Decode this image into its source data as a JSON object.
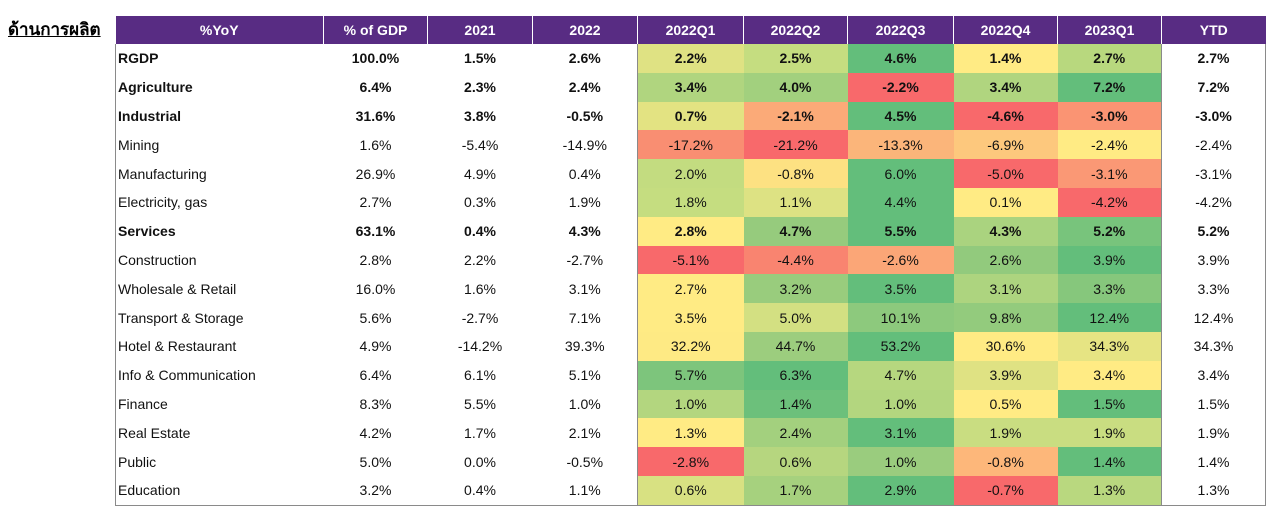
{
  "side_label": "ด้านการผลิต",
  "headers": [
    "%YoY",
    "% of GDP",
    "2021",
    "2022",
    "2022Q1",
    "2022Q2",
    "2022Q3",
    "2022Q4",
    "2023Q1",
    "YTD"
  ],
  "colors": {
    "header_bg": "#582c83",
    "header_text": "#ffffff",
    "heat_deep_green": "#63be7b",
    "heat_yellow": "#ffeb84",
    "heat_red": "#f8696b"
  },
  "rows": [
    {
      "label": "RGDP",
      "bold": true,
      "share": "100.0%",
      "y2021": "1.5%",
      "y2022": "2.6%",
      "quarters": [
        {
          "text": "2.2%",
          "color": "#dfe283"
        },
        {
          "text": "2.5%",
          "color": "#c5dd80"
        },
        {
          "text": "4.6%",
          "color": "#63be7b"
        },
        {
          "text": "1.4%",
          "color": "#ffeb84"
        },
        {
          "text": "2.7%",
          "color": "#b8d87e"
        }
      ],
      "ytd": "2.7%"
    },
    {
      "label": "Agriculture",
      "bold": true,
      "share": "6.4%",
      "y2021": "2.3%",
      "y2022": "2.4%",
      "quarters": [
        {
          "text": "3.4%",
          "color": "#b0d57f"
        },
        {
          "text": "4.0%",
          "color": "#a2d07e"
        },
        {
          "text": "-2.2%",
          "color": "#f8696b"
        },
        {
          "text": "3.4%",
          "color": "#b0d57f"
        },
        {
          "text": "7.2%",
          "color": "#63be7b"
        }
      ],
      "ytd": "7.2%"
    },
    {
      "label": "Industrial",
      "bold": true,
      "share": "31.6%",
      "y2021": "3.8%",
      "y2022": "-0.5%",
      "quarters": [
        {
          "text": "0.7%",
          "color": "#e3e382"
        },
        {
          "text": "-2.1%",
          "color": "#fbaa78"
        },
        {
          "text": "4.5%",
          "color": "#63be7b"
        },
        {
          "text": "-4.6%",
          "color": "#f8696b"
        },
        {
          "text": "-3.0%",
          "color": "#fa9473"
        }
      ],
      "ytd": "-3.0%"
    },
    {
      "label": "Mining",
      "bold": false,
      "share": "1.6%",
      "y2021": "-5.4%",
      "y2022": "-14.9%",
      "quarters": [
        {
          "text": "-17.2%",
          "color": "#f98e72"
        },
        {
          "text": "-21.2%",
          "color": "#f8696b"
        },
        {
          "text": "-13.3%",
          "color": "#fbb57a"
        },
        {
          "text": "-6.9%",
          "color": "#fdc87d"
        },
        {
          "text": "-2.4%",
          "color": "#ffeb84"
        }
      ],
      "ytd": "-2.4%"
    },
    {
      "label": "Manufacturing",
      "bold": false,
      "share": "26.9%",
      "y2021": "4.9%",
      "y2022": "0.4%",
      "quarters": [
        {
          "text": "2.0%",
          "color": "#c3dc80"
        },
        {
          "text": "-0.8%",
          "color": "#fde182"
        },
        {
          "text": "6.0%",
          "color": "#63be7b"
        },
        {
          "text": "-5.0%",
          "color": "#f8696b"
        },
        {
          "text": "-3.1%",
          "color": "#fa9875"
        }
      ],
      "ytd": "-3.1%"
    },
    {
      "label": "Electricity, gas",
      "bold": false,
      "share": "2.7%",
      "y2021": "0.3%",
      "y2022": "1.9%",
      "quarters": [
        {
          "text": "1.8%",
          "color": "#c5dd80"
        },
        {
          "text": "1.1%",
          "color": "#dde283"
        },
        {
          "text": "4.4%",
          "color": "#63be7b"
        },
        {
          "text": "0.1%",
          "color": "#ffeb84"
        },
        {
          "text": "-4.2%",
          "color": "#f8696b"
        }
      ],
      "ytd": "-4.2%"
    },
    {
      "label": "Services",
      "bold": true,
      "share": "63.1%",
      "y2021": "0.4%",
      "y2022": "4.3%",
      "quarters": [
        {
          "text": "2.8%",
          "color": "#ffeb84"
        },
        {
          "text": "4.7%",
          "color": "#96cb7d"
        },
        {
          "text": "5.5%",
          "color": "#63be7b"
        },
        {
          "text": "4.3%",
          "color": "#aad37f"
        },
        {
          "text": "5.2%",
          "color": "#78c47c"
        }
      ],
      "ytd": "5.2%"
    },
    {
      "label": "Construction",
      "bold": false,
      "share": "2.8%",
      "y2021": "2.2%",
      "y2022": "-2.7%",
      "quarters": [
        {
          "text": "-5.1%",
          "color": "#f8696b"
        },
        {
          "text": "-4.4%",
          "color": "#f98470"
        },
        {
          "text": "-2.6%",
          "color": "#fba677"
        },
        {
          "text": "2.6%",
          "color": "#92ca7d"
        },
        {
          "text": "3.9%",
          "color": "#63be7b"
        }
      ],
      "ytd": "3.9%"
    },
    {
      "label": "Wholesale & Retail",
      "bold": false,
      "share": "16.0%",
      "y2021": "1.6%",
      "y2022": "3.1%",
      "quarters": [
        {
          "text": "2.7%",
          "color": "#ffeb84"
        },
        {
          "text": "3.2%",
          "color": "#99cc7d"
        },
        {
          "text": "3.5%",
          "color": "#63be7b"
        },
        {
          "text": "3.1%",
          "color": "#add47f"
        },
        {
          "text": "3.3%",
          "color": "#86c77c"
        }
      ],
      "ytd": "3.3%"
    },
    {
      "label": "Transport & Storage",
      "bold": false,
      "share": "5.6%",
      "y2021": "-2.7%",
      "y2022": "7.1%",
      "quarters": [
        {
          "text": "3.5%",
          "color": "#ffeb84"
        },
        {
          "text": "5.0%",
          "color": "#d3e082"
        },
        {
          "text": "10.1%",
          "color": "#8dc97d"
        },
        {
          "text": "9.8%",
          "color": "#93cb7d"
        },
        {
          "text": "12.4%",
          "color": "#63be7b"
        }
      ],
      "ytd": "12.4%"
    },
    {
      "label": "Hotel & Restaurant",
      "bold": false,
      "share": "4.9%",
      "y2021": "-14.2%",
      "y2022": "39.3%",
      "quarters": [
        {
          "text": "32.2%",
          "color": "#feea84"
        },
        {
          "text": "44.7%",
          "color": "#9ccd7e"
        },
        {
          "text": "53.2%",
          "color": "#63be7b"
        },
        {
          "text": "30.6%",
          "color": "#ffeb84"
        },
        {
          "text": "34.3%",
          "color": "#e6e483"
        }
      ],
      "ytd": "34.3%"
    },
    {
      "label": "Info & Communication",
      "bold": false,
      "share": "6.4%",
      "y2021": "6.1%",
      "y2022": "5.1%",
      "quarters": [
        {
          "text": "5.7%",
          "color": "#7dc57c"
        },
        {
          "text": "6.3%",
          "color": "#63be7b"
        },
        {
          "text": "4.7%",
          "color": "#b6d77f"
        },
        {
          "text": "3.9%",
          "color": "#dfe283"
        },
        {
          "text": "3.4%",
          "color": "#ffeb84"
        }
      ],
      "ytd": "3.4%"
    },
    {
      "label": "Finance",
      "bold": false,
      "share": "8.3%",
      "y2021": "5.5%",
      "y2022": "1.0%",
      "quarters": [
        {
          "text": "1.0%",
          "color": "#b3d67f"
        },
        {
          "text": "1.4%",
          "color": "#6cc07b"
        },
        {
          "text": "1.0%",
          "color": "#b3d67f"
        },
        {
          "text": "0.5%",
          "color": "#ffeb84"
        },
        {
          "text": "1.5%",
          "color": "#63be7b"
        }
      ],
      "ytd": "1.5%"
    },
    {
      "label": "Real Estate",
      "bold": false,
      "share": "4.2%",
      "y2021": "1.7%",
      "y2022": "2.1%",
      "quarters": [
        {
          "text": "1.3%",
          "color": "#ffeb84"
        },
        {
          "text": "2.4%",
          "color": "#a3d07e"
        },
        {
          "text": "3.1%",
          "color": "#63be7b"
        },
        {
          "text": "1.9%",
          "color": "#c9dd81"
        },
        {
          "text": "1.9%",
          "color": "#c9dd81"
        }
      ],
      "ytd": "1.9%"
    },
    {
      "label": "Public",
      "bold": false,
      "share": "5.0%",
      "y2021": "0.0%",
      "y2022": "-0.5%",
      "quarters": [
        {
          "text": "-2.8%",
          "color": "#f8696b"
        },
        {
          "text": "0.6%",
          "color": "#b6d67f"
        },
        {
          "text": "1.0%",
          "color": "#9acc7e"
        },
        {
          "text": "-0.8%",
          "color": "#fdb77a"
        },
        {
          "text": "1.4%",
          "color": "#63be7b"
        }
      ],
      "ytd": "1.4%"
    },
    {
      "label": "Education",
      "bold": false,
      "share": "3.2%",
      "y2021": "0.4%",
      "y2022": "1.1%",
      "quarters": [
        {
          "text": "0.6%",
          "color": "#d8e182"
        },
        {
          "text": "1.7%",
          "color": "#a6d17e"
        },
        {
          "text": "2.9%",
          "color": "#63be7b"
        },
        {
          "text": "-0.7%",
          "color": "#f8696b"
        },
        {
          "text": "1.3%",
          "color": "#b9d87f"
        }
      ],
      "ytd": "1.3%"
    }
  ]
}
